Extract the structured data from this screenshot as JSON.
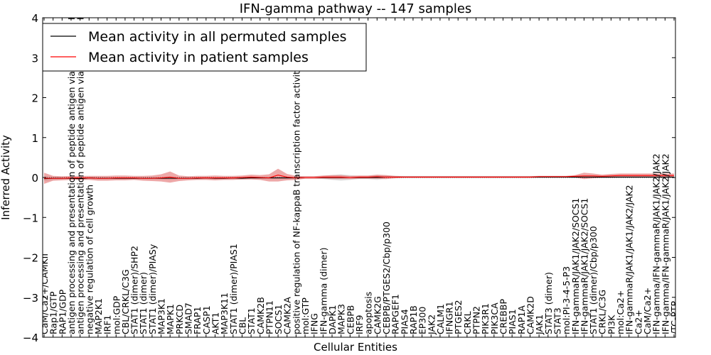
{
  "chart_data": {
    "type": "line",
    "title": "IFN-gamma pathway -- 147 samples",
    "xlabel": "Cellular Entities",
    "ylabel": "Inferred Activity",
    "ylim": [
      -4,
      4
    ],
    "yticks": [
      "4",
      "3",
      "2",
      "1",
      "0",
      "−1",
      "−2",
      "−3",
      "−4"
    ],
    "legend_position": "top-left",
    "categories": [
      "CaM/Ca2+/CAMKII",
      "Rap1/GTP",
      "RAP1/GDP",
      "antigen processing and presentation of peptide antigen via MHC class I",
      "antigen processing and presentation of peptide antigen via MHC class II",
      "negative regulation of cell growth",
      "MAP2K1",
      "IRF1",
      "mol:GDP",
      "CBL/CRKL/C3G",
      "STAT1 (dimer)/SHP2",
      "STAT1 (dimer)",
      "STAT1 (dimer)/PIASy",
      "MAP3K1",
      "MAPK1",
      "PRKCD",
      "SMAD7",
      "FRAP1",
      "CASP1",
      "AKT1",
      "MAP3K11",
      "STAT1 (dimer)/PIAS1",
      "CBL",
      "STAT1",
      "CAMK2B",
      "PTPN11",
      "SOCS1",
      "CAMK2A",
      "positive regulation of NF-kappaB transcription factor activity",
      "mol:GTP",
      "IFNG",
      "IFN-gamma (dimer)",
      "DAPK1",
      "MAPK3",
      "CEBPB",
      "IRF9",
      "apoptosis",
      "CAMK2G",
      "CEBPB/PTGES2/Cbp/p300",
      "RAPGEF1",
      "PIAS4",
      "RAP1B",
      "EP300",
      "JAK2",
      "CALM1",
      "IFNGR1",
      "PTGES2",
      "CRKL",
      "PTPN2",
      "PIK3R1",
      "PIK3CA",
      "CREBBP",
      "PIAS1",
      "RAP1A",
      "CAMK2D",
      "JAK1",
      "STAT3 (dimer)",
      "STAT3",
      "mol:PI-3-4-5-P3",
      "IFN-gammaR/JAK1/JAK2/SOCS1",
      "IFN-gammaR/JAK1/JAK2/SOCS1",
      "STAT1 (dimer)/Cbp/p300",
      "CRKL/C3G",
      "PI3K",
      "mol:Ca2+",
      "IFN-gammaR/JAK1/JAK1/JAK2/JAK2",
      "Ca2+",
      "CaM/Ca2+",
      "IFN-gamma/IFN-gammaR/JAK1/JAK2/JAK2",
      "IFN-gamma/IFN-gammaR/JAK1/JAK2/JAK2",
      "/TC-PTP"
    ],
    "series": [
      {
        "name": "Mean activity in all permuted samples",
        "color": "#000000",
        "values": [
          -0.03,
          -0.02,
          -0.02,
          -0.02,
          -0.03,
          -0.01,
          -0.02,
          -0.02,
          -0.02,
          -0.02,
          -0.02,
          -0.02,
          -0.02,
          -0.02,
          -0.02,
          -0.02,
          -0.02,
          -0.02,
          -0.01,
          -0.02,
          -0.02,
          -0.01,
          -0.02,
          -0.01,
          -0.01,
          -0.01,
          -0.01,
          -0.01,
          -0.01,
          0.0,
          0.0,
          0.0,
          0.0,
          0.0,
          0.0,
          0.0,
          0.0,
          0.0,
          0.01,
          0.01,
          0.01,
          0.01,
          0.01,
          0.01,
          0.01,
          0.01,
          0.01,
          0.01,
          0.01,
          0.01,
          0.01,
          0.01,
          0.01,
          0.01,
          0.01,
          0.01,
          0.01,
          0.01,
          0.01,
          0.01,
          0.01,
          0.01,
          0.01,
          0.01,
          0.01,
          0.01,
          0.01,
          0.01,
          0.01,
          0.01,
          0.01
        ],
        "band": [
          0.06,
          0.04,
          0.03,
          0.03,
          0.03,
          0.03,
          0.03,
          0.03,
          0.03,
          0.03,
          0.03,
          0.03,
          0.03,
          0.03,
          0.04,
          0.03,
          0.03,
          0.03,
          0.03,
          0.03,
          0.03,
          0.03,
          0.03,
          0.03,
          0.03,
          0.03,
          0.03,
          0.03,
          0.03,
          0.03,
          0.03,
          0.04,
          0.06,
          0.08,
          0.06,
          0.04,
          0.04,
          0.06,
          0.04,
          0.03,
          0.03,
          0.03,
          0.03,
          0.03,
          0.03,
          0.03,
          0.03,
          0.03,
          0.03,
          0.03,
          0.03,
          0.03,
          0.03,
          0.03,
          0.03,
          0.03,
          0.03,
          0.03,
          0.03,
          0.03,
          0.03,
          0.03,
          0.03,
          0.03,
          0.03,
          0.03,
          0.03,
          0.03,
          0.03,
          0.03,
          0.03
        ]
      },
      {
        "name": "Mean activity in patient samples",
        "color": "#ff0000",
        "values": [
          -0.02,
          -0.02,
          -0.02,
          -0.01,
          -0.01,
          -0.01,
          -0.02,
          -0.02,
          -0.01,
          -0.01,
          -0.01,
          -0.02,
          -0.02,
          -0.01,
          0.01,
          -0.02,
          -0.02,
          -0.01,
          -0.01,
          -0.01,
          -0.01,
          -0.01,
          0.0,
          0.01,
          0.0,
          -0.01,
          0.06,
          0.01,
          -0.01,
          0.0,
          0.0,
          0.01,
          0.01,
          0.01,
          0.0,
          0.01,
          0.01,
          0.02,
          0.01,
          0.01,
          0.01,
          0.01,
          0.01,
          0.01,
          0.01,
          0.01,
          0.01,
          0.01,
          0.01,
          0.01,
          0.01,
          0.01,
          0.01,
          0.01,
          0.01,
          0.02,
          0.02,
          0.02,
          0.02,
          0.03,
          0.04,
          0.04,
          0.03,
          0.04,
          0.05,
          0.05,
          0.05,
          0.05,
          0.05,
          0.05,
          0.05
        ],
        "band": [
          0.14,
          0.06,
          0.05,
          0.05,
          0.05,
          0.05,
          0.06,
          0.06,
          0.06,
          0.06,
          0.05,
          0.06,
          0.07,
          0.09,
          0.14,
          0.07,
          0.05,
          0.05,
          0.05,
          0.06,
          0.05,
          0.05,
          0.05,
          0.06,
          0.06,
          0.09,
          0.16,
          0.08,
          0.05,
          0.03,
          0.03,
          0.04,
          0.05,
          0.05,
          0.04,
          0.04,
          0.04,
          0.05,
          0.05,
          0.03,
          0.02,
          0.02,
          0.02,
          0.02,
          0.02,
          0.02,
          0.02,
          0.02,
          0.02,
          0.02,
          0.02,
          0.02,
          0.02,
          0.02,
          0.02,
          0.02,
          0.02,
          0.02,
          0.02,
          0.03,
          0.08,
          0.06,
          0.04,
          0.05,
          0.05,
          0.05,
          0.05,
          0.05,
          0.05,
          0.05,
          0.05
        ]
      }
    ]
  }
}
